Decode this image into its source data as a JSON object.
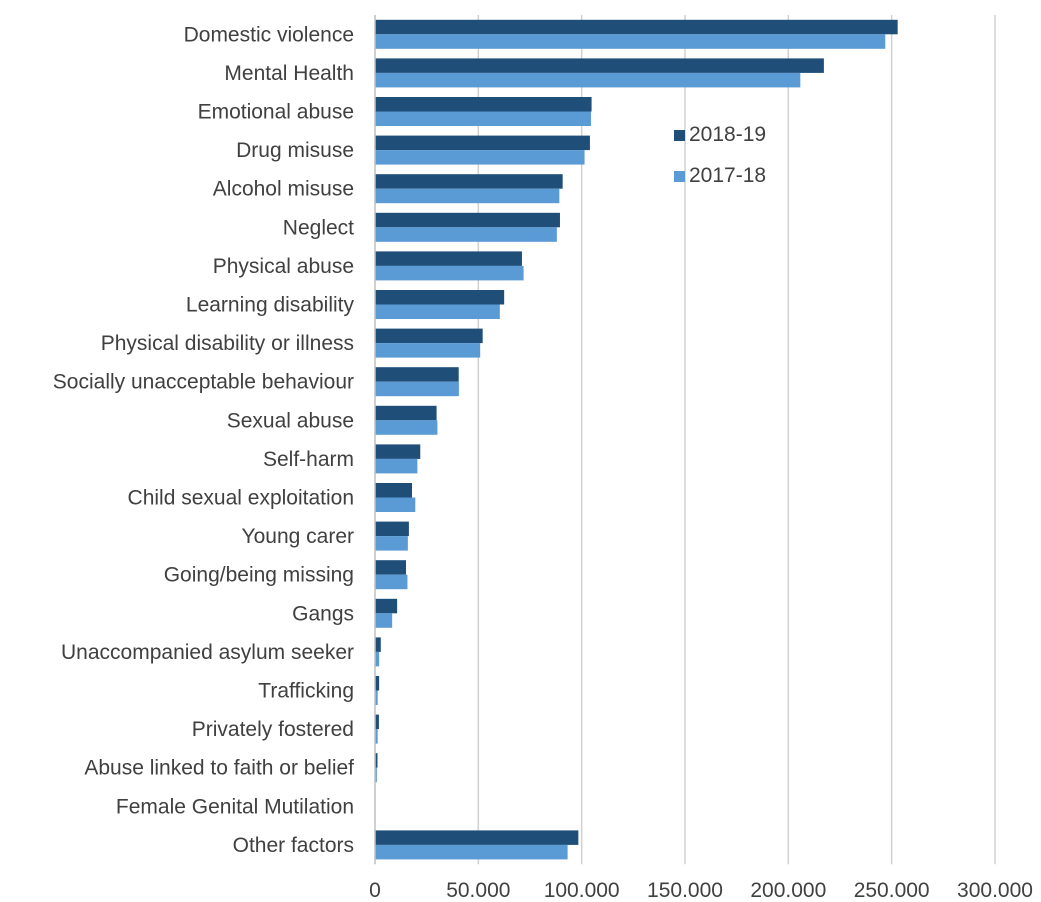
{
  "chart_data": {
    "type": "bar",
    "orientation": "horizontal",
    "categories": [
      "Domestic violence",
      "Mental Health",
      "Emotional abuse",
      "Drug misuse",
      "Alcohol misuse",
      "Neglect",
      "Physical abuse",
      "Learning disability",
      "Physical disability or illness",
      "Socially unacceptable behaviour",
      "Sexual abuse",
      "Self-harm",
      "Child sexual exploitation",
      "Young carer",
      "Going/being missing",
      "Gangs",
      "Unaccompanied asylum seeker",
      "Trafficking",
      "Privately fostered",
      "Abuse linked to faith or belief",
      "Female Genital Mutilation",
      "Other factors"
    ],
    "series": [
      {
        "name": "2018-19",
        "color": "#1f4e79",
        "values": [
          252900,
          217200,
          104800,
          104000,
          90800,
          89500,
          71100,
          62500,
          52100,
          40500,
          29800,
          21900,
          17900,
          16400,
          15000,
          10700,
          2800,
          2000,
          1900,
          1200,
          100,
          98400
        ]
      },
      {
        "name": "2017-18",
        "color": "#5b9bd5",
        "values": [
          246900,
          205800,
          104500,
          101400,
          89200,
          88000,
          71900,
          60400,
          50900,
          40600,
          30200,
          20500,
          19500,
          15900,
          15700,
          8300,
          2000,
          1300,
          1300,
          900,
          0,
          93200
        ]
      }
    ],
    "xlim": [
      0,
      300000
    ],
    "xticks": [
      "0",
      "50.000",
      "100.000",
      "150.000",
      "200.000",
      "250.000",
      "300.000"
    ],
    "xtick_values": [
      0,
      50000,
      100000,
      150000,
      200000,
      250000,
      300000
    ],
    "grid": "vertical",
    "legend": "right, upper-middle",
    "title": "",
    "xlabel": "",
    "ylabel": ""
  }
}
